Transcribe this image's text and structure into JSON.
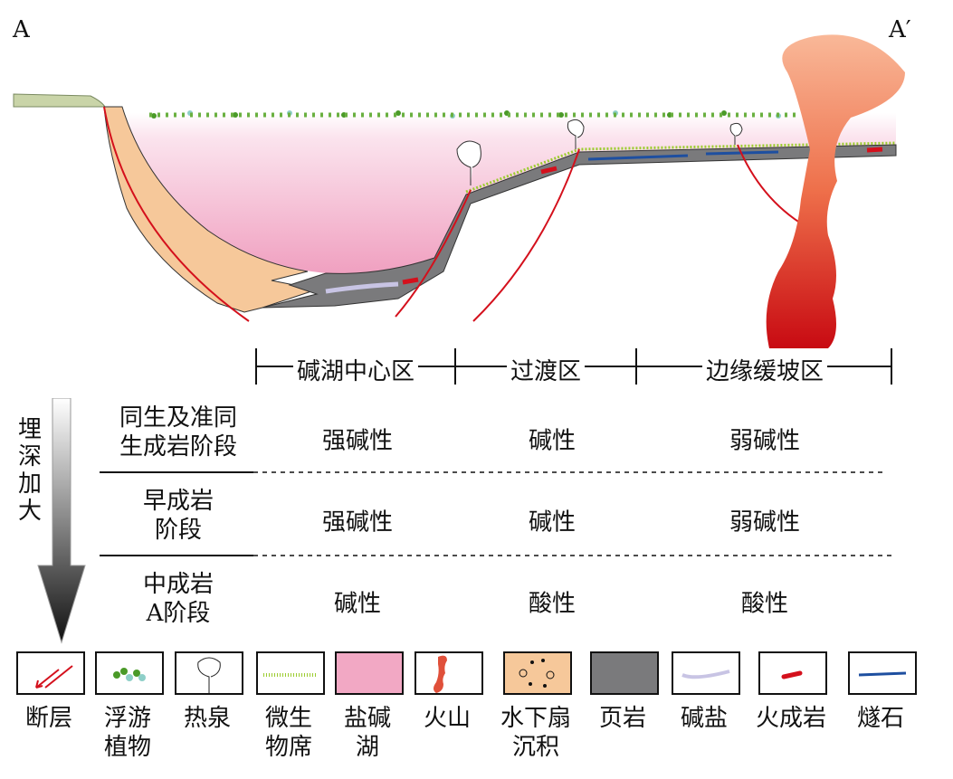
{
  "section": {
    "left_label": "A",
    "right_label": "A′"
  },
  "zones": [
    "碱湖中心区",
    "过渡区",
    "边缘缓坡区"
  ],
  "depth_label": "埋深加大",
  "stages": [
    {
      "label_lines": [
        "同生及准同",
        "生成岩阶段"
      ],
      "values": [
        "强碱性",
        "碱性",
        "弱碱性"
      ]
    },
    {
      "label_lines": [
        "早成岩",
        "阶段"
      ],
      "values": [
        "强碱性",
        "碱性",
        "弱碱性"
      ]
    },
    {
      "label_lines": [
        "中成岩",
        "A阶段"
      ],
      "values": [
        "碱性",
        "酸性",
        "酸性"
      ]
    }
  ],
  "legend": [
    {
      "icon": "fault",
      "lines": [
        "断层",
        ""
      ]
    },
    {
      "icon": "plankton",
      "lines": [
        "浮游",
        "植物"
      ]
    },
    {
      "icon": "hot-spring",
      "lines": [
        "热泉",
        ""
      ]
    },
    {
      "icon": "microbial-mat",
      "lines": [
        "微生",
        "物席"
      ]
    },
    {
      "icon": "saline-alkaline-lake",
      "lines": [
        "盐碱",
        "湖"
      ]
    },
    {
      "icon": "volcano",
      "lines": [
        "火山",
        ""
      ]
    },
    {
      "icon": "subaqueous-fan",
      "lines": [
        "水下扇",
        "沉积"
      ]
    },
    {
      "icon": "shale",
      "lines": [
        "页岩",
        ""
      ]
    },
    {
      "icon": "alkali-salt",
      "lines": [
        "碱盐",
        ""
      ]
    },
    {
      "icon": "igneous-rock",
      "lines": [
        "火成岩",
        ""
      ]
    },
    {
      "icon": "chert",
      "lines": [
        "燧石",
        ""
      ]
    }
  ],
  "colors": {
    "fault": "#d4101c",
    "lake": "#f2a8c4",
    "fan": "#f6c89a",
    "shale": "#7a7a7c",
    "salt": "#c8c4e4",
    "igneous": "#d4101c",
    "chert": "#1e4fa0",
    "plankton_green": "#4a9a28",
    "plankton_teal": "#8ecfc8",
    "mat": "#9ccc30",
    "land": "#c9d4a8"
  }
}
